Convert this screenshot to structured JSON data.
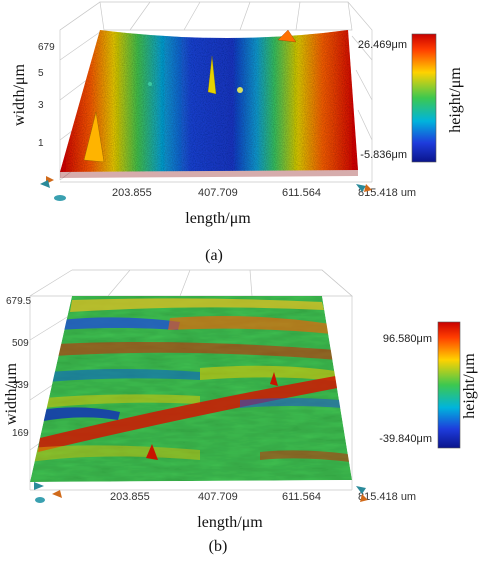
{
  "chart_data": [
    {
      "type": "heatmap",
      "caption": "(a)",
      "xlabel": "length/μm",
      "ylabel": "width/μm",
      "zlabel": "height/μm",
      "x_ticks": [
        "203.855",
        "407.709",
        "611.564",
        "815.418 um"
      ],
      "y_ticks": [
        "679",
        "5",
        "3",
        "1"
      ],
      "z_range": [
        -5.836,
        26.469
      ],
      "zlim_labels": [
        "26.469μm",
        "-5.836μm"
      ],
      "colormap": [
        "#c80000",
        "#ff5000",
        "#ffd200",
        "#3cc850",
        "#00b4dc",
        "#1e3cdc",
        "#0a148c"
      ],
      "height_profile": [
        26.5,
        20,
        12,
        4,
        -2,
        -5,
        -5.5,
        -5.8,
        -5.5,
        -4.5,
        -1,
        6,
        14,
        22,
        26.5
      ]
    },
    {
      "type": "heatmap",
      "caption": "(b)",
      "xlabel": "length/μm",
      "ylabel": "width/μm",
      "zlabel": "height/μm",
      "x_ticks": [
        "203.855",
        "407.709",
        "611.564",
        "815.418 um"
      ],
      "y_ticks": [
        "679.5",
        "509",
        "339",
        "169"
      ],
      "z_range": [
        -39.84,
        96.58
      ],
      "zlim_labels": [
        "96.580μm",
        "-39.840μm"
      ],
      "colormap": [
        "#c80000",
        "#ff5000",
        "#ffd200",
        "#3cc850",
        "#00b4dc",
        "#1e3cdc",
        "#0a148c"
      ]
    }
  ]
}
